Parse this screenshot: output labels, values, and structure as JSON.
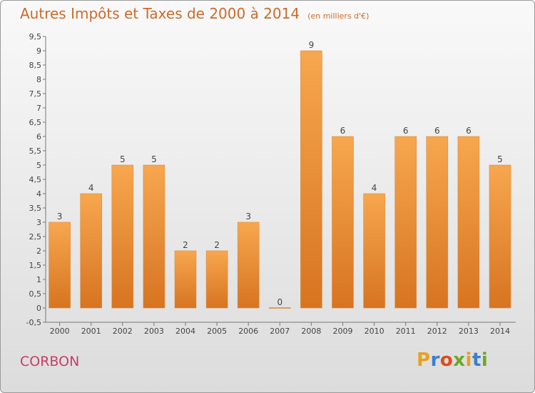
{
  "header": {
    "title": "Autres Impôts et Taxes de 2000 à 2014",
    "subtitle": "(en milliers d'€)"
  },
  "footer": {
    "commune": "CORBON",
    "logo": "Proxiti"
  },
  "logo_colors": [
    "#e8a020",
    "#3a7fd0",
    "#e04a1a",
    "#6aa82a",
    "#e8a020",
    "#3a7fd0",
    "#6aa82a"
  ],
  "colors": {
    "bar_light": "#f7a74f",
    "bar_dark": "#d77420",
    "title": "#ce6a2a",
    "commune": "#c63e68"
  },
  "chart_data": {
    "type": "bar",
    "title": "Autres Impôts et Taxes de 2000 à 2014",
    "subtitle": "(en milliers d'€)",
    "xlabel": "",
    "ylabel": "",
    "categories": [
      "2000",
      "2001",
      "2002",
      "2003",
      "2004",
      "2005",
      "2006",
      "2007",
      "2008",
      "2009",
      "2010",
      "2011",
      "2012",
      "2013",
      "2014"
    ],
    "values": [
      3,
      4,
      5,
      5,
      2,
      2,
      3,
      0,
      9,
      6,
      4,
      6,
      6,
      6,
      5
    ],
    "ylim": [
      -0.5,
      9.5
    ],
    "yticks": [
      "-0,5",
      "0",
      "0,5",
      "1",
      "1,5",
      "2",
      "2,5",
      "3",
      "3,5",
      "4",
      "4,5",
      "5",
      "5,5",
      "6",
      "6,5",
      "7",
      "7,5",
      "8",
      "8,5",
      "9",
      "9,5"
    ],
    "ytick_values": [
      -0.5,
      0,
      0.5,
      1,
      1.5,
      2,
      2.5,
      3,
      3.5,
      4,
      4.5,
      5,
      5.5,
      6,
      6.5,
      7,
      7.5,
      8,
      8.5,
      9,
      9.5
    ],
    "grid": false,
    "legend": "none"
  }
}
